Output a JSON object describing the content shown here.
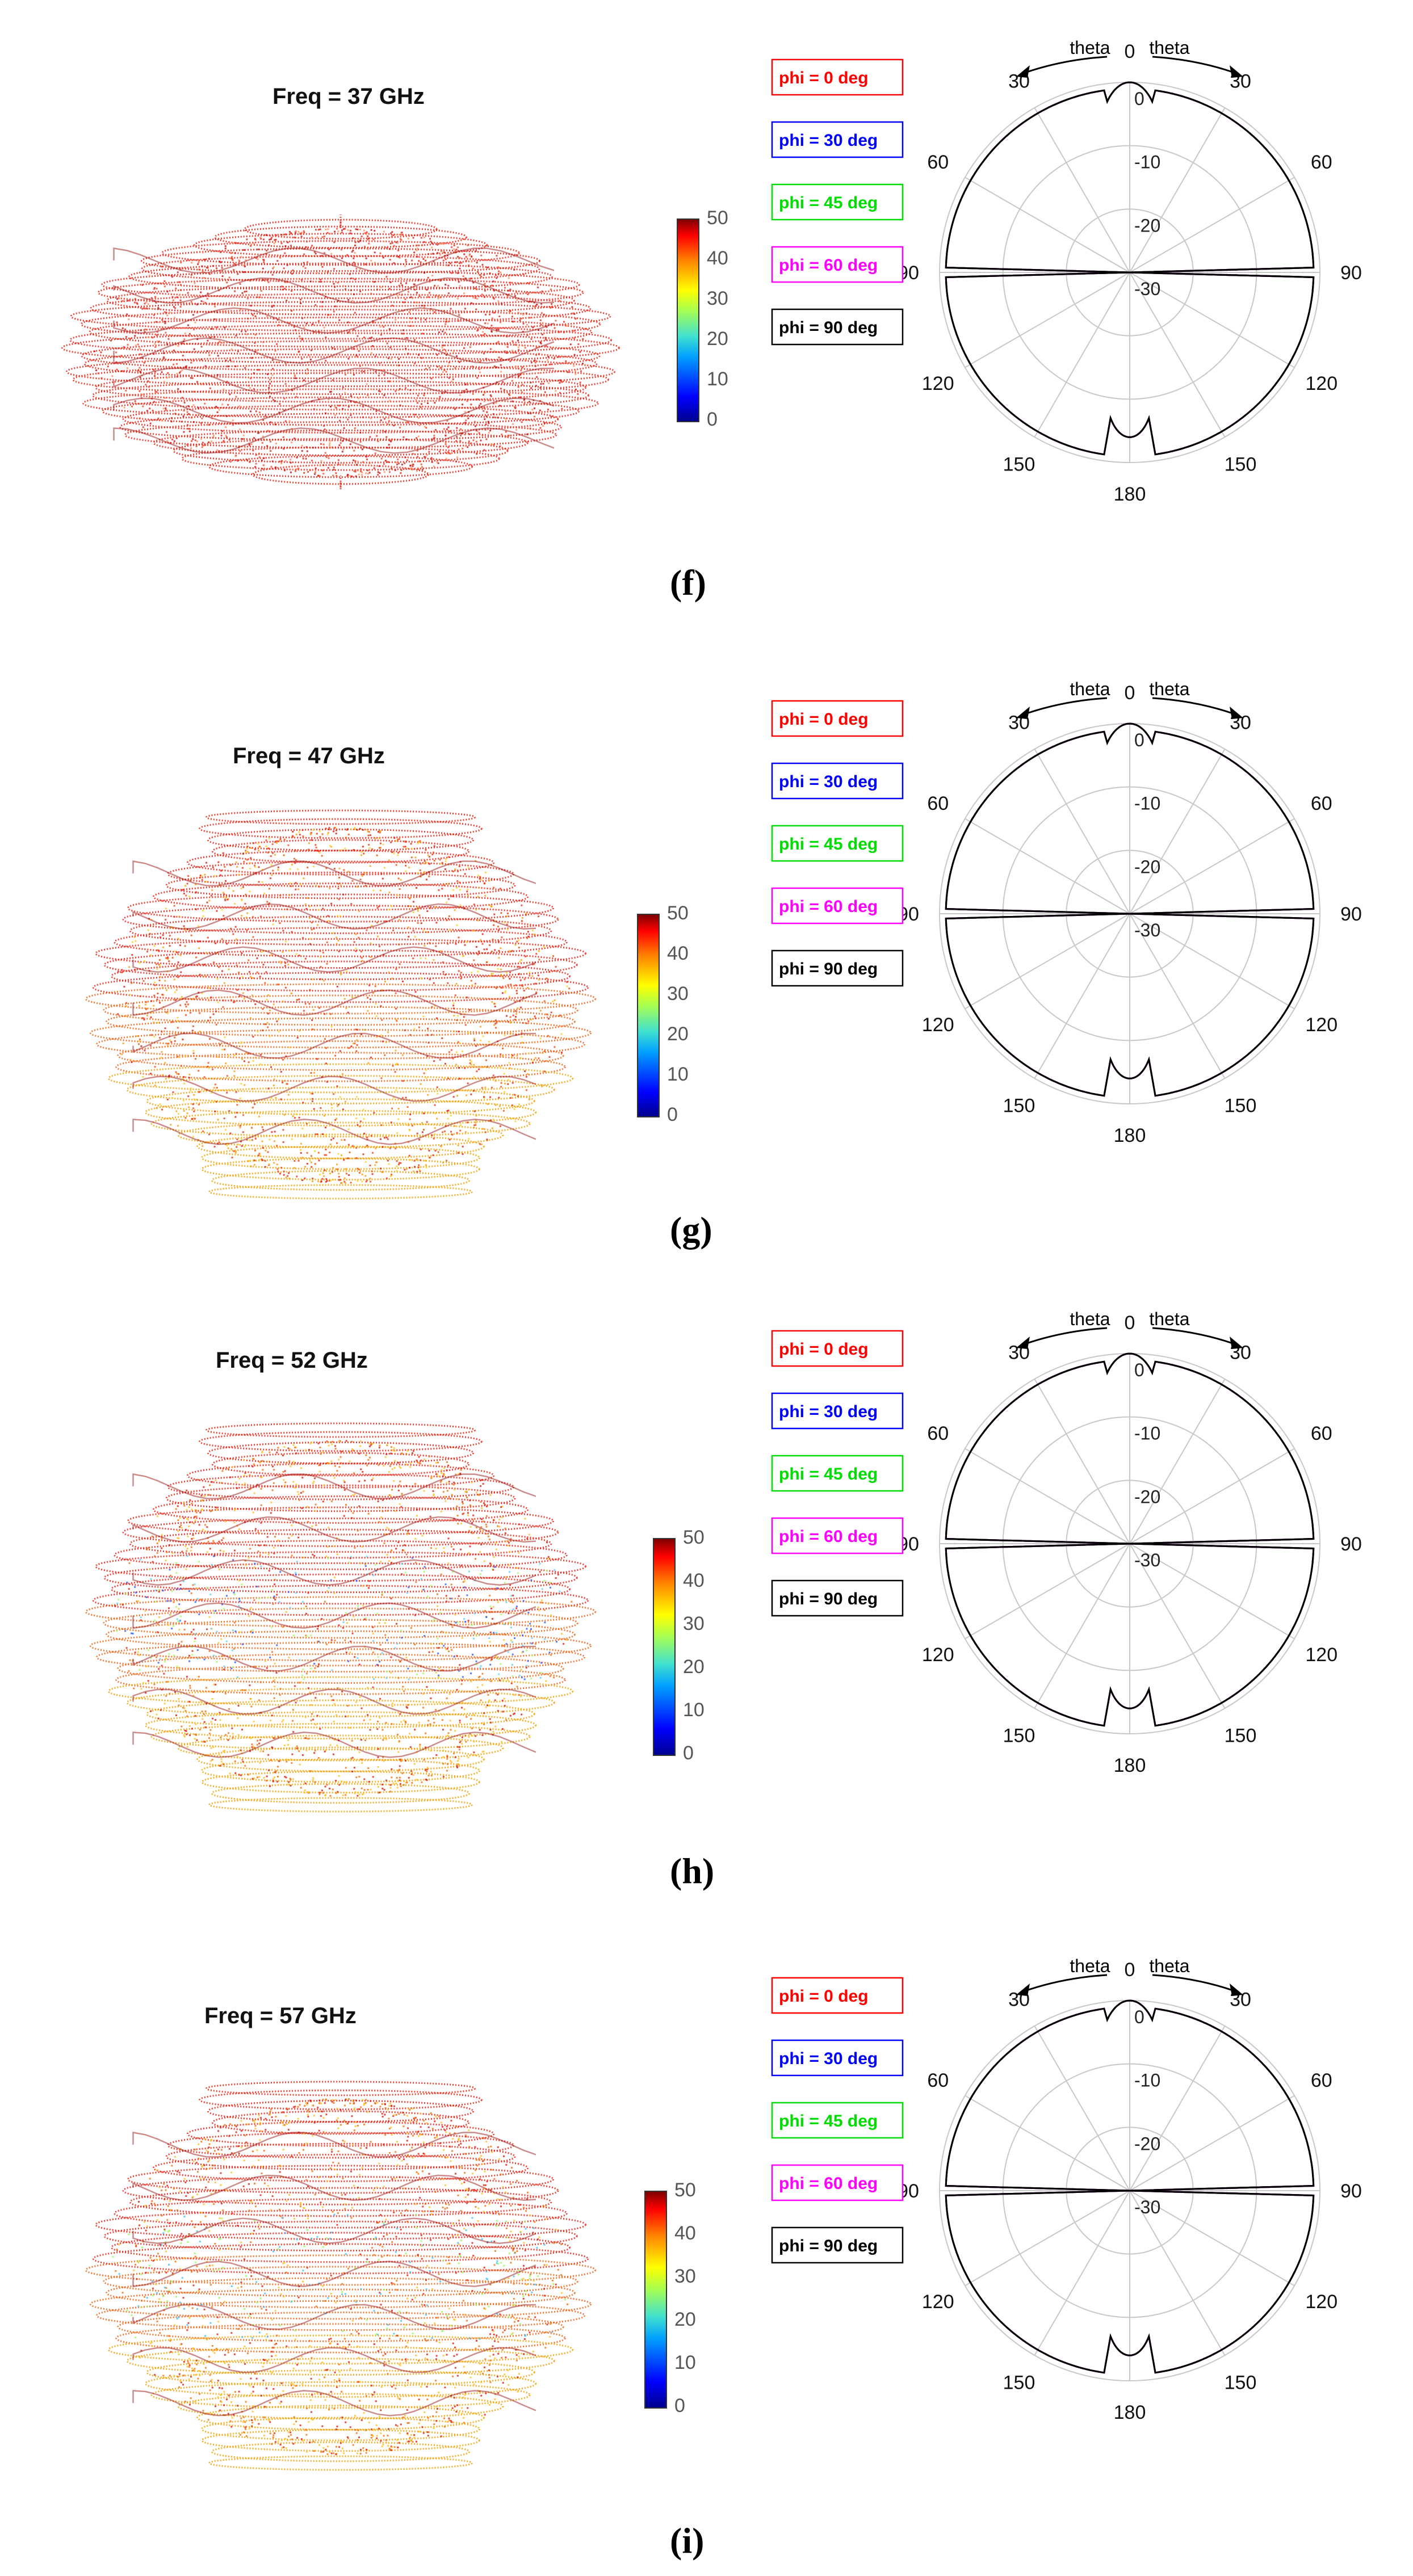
{
  "chart_data": [
    {
      "type": "polar",
      "label": "(f)",
      "frequency_title": "Freq = 37 GHz",
      "colorbar": {
        "ticks": [
          "50",
          "40",
          "30",
          "20",
          "10",
          "0"
        ],
        "range": [
          0,
          50
        ]
      },
      "theta_ticks": [
        "0",
        "30",
        "60",
        "90",
        "120",
        "150",
        "180",
        "150",
        "120",
        "90",
        "60",
        "30"
      ],
      "radial_ticks": [
        "0",
        "-10",
        "-20",
        "-30"
      ],
      "arrow_labels": [
        "theta",
        "theta"
      ],
      "legend": [
        "phi = 0  deg",
        "phi = 30 deg",
        "phi = 45 deg",
        "phi = 60 deg",
        "phi = 90 deg"
      ],
      "legend_colors": [
        "#ff0000",
        "#0000ff",
        "#00dd00",
        "#ff00ff",
        "#000000"
      ],
      "pattern": {
        "main_lobe": 0,
        "floor": -6,
        "deep_null": -31,
        "ripple": 1.2,
        "ripple_freq": 22,
        "lobes": 4,
        "lobe_width": 4
      }
    },
    {
      "type": "polar",
      "label": "(g)",
      "frequency_title": "Freq = 47 GHz",
      "colorbar": {
        "ticks": [
          "50",
          "40",
          "30",
          "20",
          "10",
          "0"
        ],
        "range": [
          0,
          50
        ]
      },
      "theta_ticks": [
        "0",
        "30",
        "60",
        "90",
        "120",
        "150",
        "180",
        "150",
        "120",
        "90",
        "60",
        "30"
      ],
      "radial_ticks": [
        "0",
        "-10",
        "-20",
        "-30"
      ],
      "arrow_labels": [
        "theta",
        "theta"
      ],
      "legend": [
        "phi = 0  deg",
        "phi = 30 deg",
        "phi = 45 deg",
        "phi = 60 deg",
        "phi = 90 deg"
      ],
      "legend_colors": [
        "#ff0000",
        "#0000ff",
        "#00dd00",
        "#ff00ff",
        "#000000"
      ],
      "pattern": {
        "main_lobe": 0,
        "floor": -10,
        "deep_null": -31,
        "ripple": 4,
        "ripple_freq": 26,
        "lobes": 8,
        "lobe_width": 3
      }
    },
    {
      "type": "polar",
      "label": "(h)",
      "frequency_title": "Freq = 52 GHz",
      "colorbar": {
        "ticks": [
          "50",
          "40",
          "30",
          "20",
          "10",
          "0"
        ],
        "range": [
          0,
          50
        ]
      },
      "theta_ticks": [
        "0",
        "30",
        "60",
        "90",
        "120",
        "150",
        "180",
        "150",
        "120",
        "90",
        "60",
        "30"
      ],
      "radial_ticks": [
        "0",
        "-10",
        "-20",
        "-30"
      ],
      "arrow_labels": [
        "theta",
        "theta"
      ],
      "legend": [
        "phi = 0  deg",
        "phi = 30 deg",
        "phi = 45 deg",
        "phi = 60 deg",
        "phi = 90 deg"
      ],
      "legend_colors": [
        "#ff0000",
        "#0000ff",
        "#00dd00",
        "#ff00ff",
        "#000000"
      ],
      "pattern": {
        "main_lobe": 0,
        "floor": -12,
        "deep_null": -31,
        "ripple": 5,
        "ripple_freq": 30,
        "lobes": 10,
        "lobe_width": 3
      }
    },
    {
      "type": "polar",
      "label": "(i)",
      "frequency_title": "Freq = 57 GHz",
      "colorbar": {
        "ticks": [
          "50",
          "40",
          "30",
          "20",
          "10",
          "0"
        ],
        "range": [
          0,
          50
        ]
      },
      "theta_ticks": [
        "0",
        "30",
        "60",
        "90",
        "120",
        "150",
        "180",
        "150",
        "120",
        "90",
        "60",
        "30"
      ],
      "radial_ticks": [
        "0",
        "-10",
        "-20",
        "-30"
      ],
      "arrow_labels": [
        "theta",
        "theta"
      ],
      "legend": [
        "phi = 0  deg",
        "phi = 30 deg",
        "phi = 45 deg",
        "phi = 60 deg",
        "phi = 90 deg"
      ],
      "legend_colors": [
        "#ff0000",
        "#0000ff",
        "#00dd00",
        "#ff00ff",
        "#000000"
      ],
      "pattern": {
        "main_lobe": 0,
        "floor": -13,
        "deep_null": -31,
        "ripple": 5,
        "ripple_freq": 34,
        "lobes": 12,
        "lobe_width": 3
      }
    }
  ]
}
